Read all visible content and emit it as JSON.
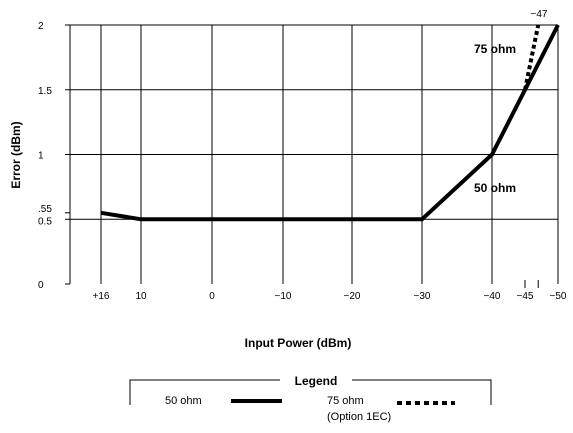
{
  "chart_data": {
    "type": "line",
    "xlabel": "Input Power (dBm)",
    "ylabel": "Error (dBm)",
    "x_tick_labels": [
      "+16",
      "10",
      "0",
      "−10",
      "−20",
      "−30",
      "−40",
      "−45",
      "−50"
    ],
    "x_tick_values": [
      16,
      10,
      0,
      -10,
      -20,
      -30,
      -40,
      -45,
      -50
    ],
    "y_tick_labels": [
      "0",
      "0.5",
      ".55",
      "1",
      "1.5",
      "2"
    ],
    "y_tick_values": [
      0,
      0.5,
      0.55,
      1,
      1.5,
      2
    ],
    "xlim": [
      16,
      -50
    ],
    "ylim": [
      0,
      2
    ],
    "grid": true,
    "series": [
      {
        "name": "50 ohm",
        "style": "solid",
        "color": "#000000",
        "points": [
          [
            16,
            0.55
          ],
          [
            10,
            0.5
          ],
          [
            0,
            0.5
          ],
          [
            -10,
            0.5
          ],
          [
            -20,
            0.5
          ],
          [
            -30,
            0.5
          ],
          [
            -40,
            1.0
          ],
          [
            -45,
            1.5
          ],
          [
            -50,
            2.0
          ]
        ]
      },
      {
        "name": "75 ohm",
        "style": "dotted",
        "color": "#000000",
        "points": [
          [
            -45,
            1.5
          ],
          [
            -47,
            2.0
          ]
        ]
      }
    ],
    "annotations": [
      {
        "text": "−47",
        "x": -47,
        "y": 2.0
      },
      {
        "text": "75 ohm",
        "x": -42,
        "y": 1.81
      },
      {
        "text": "50 ohm",
        "x": -42,
        "y": 0.75
      }
    ],
    "legend": {
      "title": "Legend",
      "placement": "bottom",
      "entries": [
        {
          "label": "50 ohm",
          "style": "solid"
        },
        {
          "label": "75 ohm",
          "sublabel": "(Option 1EC)",
          "style": "dotted"
        }
      ]
    }
  }
}
